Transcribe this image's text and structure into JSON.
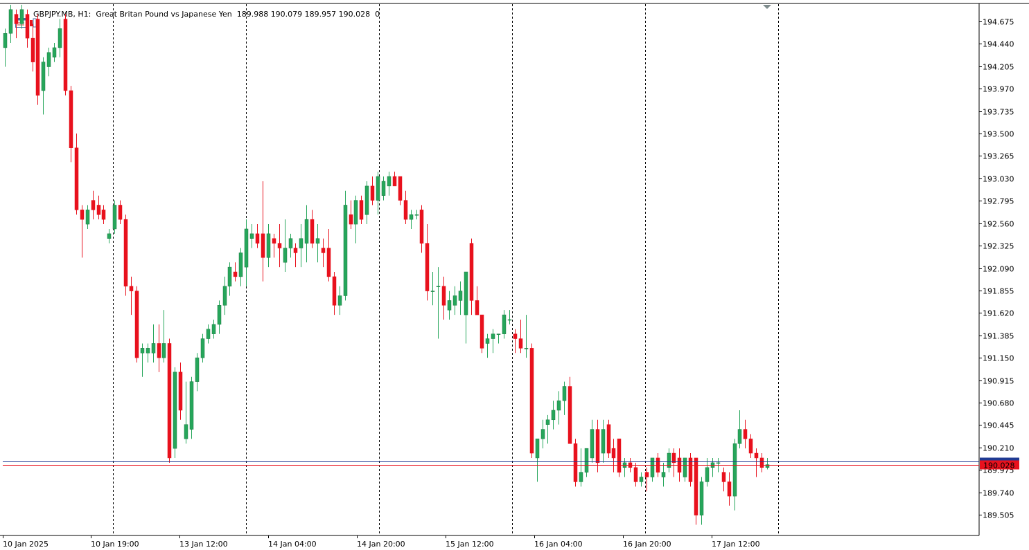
{
  "header": {
    "symbol": "GBPJPY.MB",
    "timeframe": "H1:",
    "description": "Great Britan Pound vs Japanese Yen",
    "ohlc": "189.988 190.079 189.957 190.028",
    "extra": "0"
  },
  "icons": [
    "chart-window-icon",
    "chart-type-icon"
  ],
  "colors": {
    "bull": "#26a65b",
    "bear": "#e8111d",
    "bid_line": "#e8111d",
    "ask_line": "#1f3a93",
    "price_label_bg": "#e8111d"
  },
  "chart_data": {
    "type": "candlestick",
    "symbol": "GBPJPY.MB",
    "timeframe": "H1",
    "y_ticks": [
      "194.675",
      "194.440",
      "194.205",
      "193.970",
      "193.735",
      "193.500",
      "193.265",
      "193.030",
      "192.795",
      "192.560",
      "192.325",
      "192.090",
      "191.855",
      "191.620",
      "191.385",
      "191.150",
      "190.915",
      "190.680",
      "190.445",
      "190.210",
      "189.975",
      "189.740",
      "189.505"
    ],
    "ylim": [
      189.33,
      194.88
    ],
    "x_labels": [
      "10 Jan 2025",
      "10 Jan 19:00",
      "13 Jan 12:00",
      "14 Jan 04:00",
      "14 Jan 20:00",
      "15 Jan 12:00",
      "16 Jan 04:00",
      "16 Jan 20:00",
      "17 Jan 12:00"
    ],
    "period_separators": 7,
    "current_price": "190.028",
    "ask_price": "190.060",
    "candles": [
      [
        194.4,
        194.6,
        194.2,
        194.55
      ],
      [
        194.55,
        194.85,
        194.45,
        194.8
      ],
      [
        194.75,
        194.8,
        194.5,
        194.65
      ],
      [
        194.65,
        194.85,
        194.6,
        194.8
      ],
      [
        194.75,
        194.8,
        194.4,
        194.5
      ],
      [
        194.5,
        194.65,
        194.15,
        194.25
      ],
      [
        194.7,
        194.75,
        193.8,
        193.9
      ],
      [
        193.95,
        194.3,
        193.7,
        194.25
      ],
      [
        194.2,
        194.4,
        194.1,
        194.35
      ],
      [
        194.3,
        194.45,
        194.25,
        194.4
      ],
      [
        194.4,
        194.7,
        194.3,
        194.6
      ],
      [
        194.7,
        194.75,
        193.9,
        193.95
      ],
      [
        193.95,
        194.0,
        193.2,
        193.35
      ],
      [
        193.35,
        193.5,
        192.65,
        192.7
      ],
      [
        192.7,
        192.75,
        192.2,
        192.6
      ],
      [
        192.55,
        192.75,
        192.5,
        192.7
      ],
      [
        192.8,
        192.9,
        192.6,
        192.7
      ],
      [
        192.75,
        192.85,
        192.6,
        192.65
      ],
      [
        192.7,
        192.75,
        192.55,
        192.6
      ],
      [
        192.4,
        192.5,
        192.35,
        192.45
      ],
      [
        192.5,
        192.8,
        192.45,
        192.75
      ],
      [
        192.75,
        192.8,
        192.55,
        192.6
      ],
      [
        192.6,
        192.65,
        191.8,
        191.9
      ],
      [
        191.9,
        192.0,
        191.6,
        191.85
      ],
      [
        191.85,
        191.9,
        191.1,
        191.15
      ],
      [
        191.2,
        191.3,
        190.95,
        191.25
      ],
      [
        191.2,
        191.3,
        191.1,
        191.25
      ],
      [
        191.2,
        191.5,
        191.1,
        191.3
      ],
      [
        191.3,
        191.5,
        191.0,
        191.15
      ],
      [
        191.15,
        191.65,
        191.1,
        191.3
      ],
      [
        191.3,
        191.35,
        190.05,
        190.1
      ],
      [
        190.2,
        191.05,
        190.1,
        191.0
      ],
      [
        191.0,
        191.1,
        190.5,
        190.6
      ],
      [
        190.3,
        190.9,
        190.25,
        190.45
      ],
      [
        190.4,
        190.95,
        190.3,
        190.9
      ],
      [
        190.9,
        191.2,
        190.8,
        191.15
      ],
      [
        191.15,
        191.4,
        191.1,
        191.35
      ],
      [
        191.35,
        191.5,
        191.3,
        191.45
      ],
      [
        191.4,
        191.55,
        191.35,
        191.5
      ],
      [
        191.5,
        191.75,
        191.4,
        191.7
      ],
      [
        191.7,
        192.0,
        191.6,
        191.9
      ],
      [
        191.9,
        192.15,
        191.8,
        192.1
      ],
      [
        192.05,
        192.15,
        191.95,
        192.0
      ],
      [
        192.0,
        192.3,
        191.9,
        192.25
      ],
      [
        192.1,
        192.6,
        191.9,
        192.5
      ],
      [
        192.4,
        192.55,
        192.3,
        192.45
      ],
      [
        192.45,
        192.55,
        192.3,
        192.35
      ],
      [
        192.45,
        193.0,
        191.95,
        192.2
      ],
      [
        192.2,
        192.55,
        192.1,
        192.45
      ],
      [
        192.4,
        192.45,
        192.2,
        192.35
      ],
      [
        192.35,
        192.55,
        192.1,
        192.3
      ],
      [
        192.15,
        192.6,
        192.05,
        192.3
      ],
      [
        192.3,
        192.45,
        192.2,
        192.4
      ],
      [
        192.3,
        192.35,
        192.1,
        192.25
      ],
      [
        192.3,
        192.55,
        192.1,
        192.4
      ],
      [
        192.35,
        192.75,
        192.15,
        192.6
      ],
      [
        192.6,
        192.7,
        192.3,
        192.35
      ],
      [
        192.35,
        192.55,
        192.15,
        192.4
      ],
      [
        192.3,
        192.4,
        192.1,
        192.25
      ],
      [
        192.3,
        192.5,
        191.95,
        192.0
      ],
      [
        192.0,
        192.05,
        191.6,
        191.7
      ],
      [
        191.7,
        191.9,
        191.6,
        191.8
      ],
      [
        191.8,
        192.9,
        191.75,
        192.75
      ],
      [
        192.65,
        192.8,
        192.5,
        192.55
      ],
      [
        192.55,
        192.85,
        192.35,
        192.8
      ],
      [
        192.8,
        192.85,
        192.55,
        192.6
      ],
      [
        192.65,
        193.0,
        192.55,
        192.95
      ],
      [
        192.95,
        193.05,
        192.75,
        192.8
      ],
      [
        192.8,
        193.1,
        192.65,
        193.05
      ],
      [
        192.85,
        193.05,
        192.8,
        193.0
      ],
      [
        192.95,
        193.1,
        192.85,
        193.05
      ],
      [
        193.05,
        193.1,
        192.95,
        192.95
      ],
      [
        193.05,
        193.05,
        192.75,
        192.8
      ],
      [
        192.8,
        192.9,
        192.55,
        192.6
      ],
      [
        192.6,
        192.7,
        192.5,
        192.65
      ],
      [
        192.65,
        192.7,
        192.6,
        192.65
      ],
      [
        192.7,
        192.75,
        192.25,
        192.35
      ],
      [
        192.35,
        192.55,
        191.75,
        191.85
      ],
      [
        191.85,
        192.05,
        191.7,
        191.85
      ],
      [
        191.9,
        192.1,
        191.35,
        191.9
      ],
      [
        191.9,
        192.0,
        191.55,
        191.7
      ],
      [
        191.65,
        191.85,
        191.55,
        191.75
      ],
      [
        191.7,
        191.9,
        191.6,
        191.8
      ],
      [
        191.75,
        191.95,
        191.6,
        191.85
      ],
      [
        191.6,
        192.0,
        191.3,
        192.05
      ],
      [
        192.35,
        192.4,
        191.6,
        191.75
      ],
      [
        191.75,
        191.9,
        191.6,
        191.6
      ],
      [
        191.6,
        191.6,
        191.2,
        191.25
      ],
      [
        191.3,
        191.4,
        191.15,
        191.35
      ],
      [
        191.35,
        191.45,
        191.2,
        191.4
      ],
      [
        191.4,
        191.4,
        191.3,
        191.4
      ],
      [
        191.4,
        191.65,
        191.35,
        191.6
      ],
      [
        191.55,
        191.65,
        191.5,
        191.55
      ],
      [
        191.4,
        191.45,
        191.2,
        191.35
      ],
      [
        191.35,
        191.55,
        191.2,
        191.25
      ],
      [
        191.25,
        191.6,
        191.15,
        191.25
      ],
      [
        191.25,
        191.3,
        190.1,
        190.15
      ],
      [
        190.1,
        190.25,
        189.85,
        190.3
      ],
      [
        190.3,
        190.5,
        190.2,
        190.4
      ],
      [
        190.45,
        190.55,
        190.25,
        190.5
      ],
      [
        190.5,
        190.7,
        190.4,
        190.6
      ],
      [
        190.6,
        190.8,
        190.45,
        190.7
      ],
      [
        190.7,
        190.9,
        190.55,
        190.85
      ],
      [
        190.85,
        190.95,
        190.25,
        190.25
      ],
      [
        190.25,
        190.3,
        189.8,
        189.85
      ],
      [
        189.85,
        190.2,
        189.8,
        189.95
      ],
      [
        189.95,
        190.2,
        189.9,
        190.2
      ],
      [
        190.1,
        190.5,
        190.05,
        190.4
      ],
      [
        190.4,
        190.5,
        189.95,
        190.05
      ],
      [
        190.15,
        190.5,
        190.05,
        190.4
      ],
      [
        190.45,
        190.5,
        190.1,
        190.15
      ],
      [
        190.2,
        190.3,
        189.95,
        190.1
      ],
      [
        190.3,
        190.3,
        189.9,
        189.95
      ],
      [
        190.0,
        190.1,
        189.9,
        190.05
      ],
      [
        190.05,
        190.1,
        189.95,
        190.0
      ],
      [
        190.0,
        190.05,
        189.8,
        189.85
      ],
      [
        189.85,
        189.95,
        189.8,
        189.9
      ],
      [
        189.95,
        190.0,
        189.75,
        189.9
      ],
      [
        189.9,
        190.1,
        189.85,
        190.1
      ],
      [
        190.1,
        190.15,
        189.9,
        189.95
      ],
      [
        189.9,
        190.05,
        189.8,
        189.95
      ],
      [
        190.0,
        190.2,
        189.95,
        190.15
      ],
      [
        190.15,
        190.2,
        189.9,
        190.05
      ],
      [
        190.1,
        190.2,
        189.85,
        189.95
      ],
      [
        189.9,
        190.1,
        189.85,
        190.1
      ],
      [
        190.1,
        190.15,
        189.8,
        189.85
      ],
      [
        190.1,
        190.1,
        189.4,
        189.5
      ],
      [
        189.5,
        189.9,
        189.4,
        189.85
      ],
      [
        189.85,
        190.1,
        189.8,
        190.0
      ],
      [
        190.0,
        190.1,
        189.9,
        190.05
      ],
      [
        190.05,
        190.1,
        189.95,
        190.05
      ],
      [
        189.95,
        190.0,
        189.75,
        189.85
      ],
      [
        189.85,
        189.95,
        189.6,
        189.7
      ],
      [
        189.7,
        190.3,
        189.55,
        190.25
      ],
      [
        190.25,
        190.6,
        190.2,
        190.4
      ],
      [
        190.4,
        190.5,
        190.2,
        190.3
      ],
      [
        190.3,
        190.35,
        190.1,
        190.15
      ],
      [
        190.15,
        190.2,
        189.9,
        190.1
      ],
      [
        190.1,
        190.15,
        189.95,
        190.0
      ],
      [
        190.0,
        190.1,
        189.98,
        190.03
      ]
    ]
  }
}
